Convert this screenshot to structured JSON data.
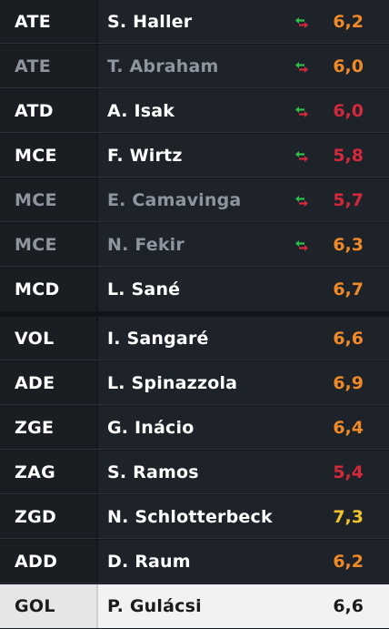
{
  "colors": {
    "orange": "#f08a28",
    "red": "#d4283c",
    "yellow": "#f2c12e",
    "dark_text": "#1b1b1b"
  },
  "players": [
    {
      "pos": "ATE",
      "name": "S. Haller",
      "rating": "6,2",
      "rating_color": "#f08a28",
      "sub": true,
      "dim": false
    },
    {
      "pos": "ATE",
      "name": "T. Abraham",
      "rating": "6,0",
      "rating_color": "#f08a28",
      "sub": true,
      "dim": true
    },
    {
      "pos": "ATD",
      "name": "A. Isak",
      "rating": "6,0",
      "rating_color": "#d4283c",
      "sub": true,
      "dim": false
    },
    {
      "pos": "MCE",
      "name": "F. Wirtz",
      "rating": "5,8",
      "rating_color": "#d4283c",
      "sub": true,
      "dim": false
    },
    {
      "pos": "MCE",
      "name": "E. Camavinga",
      "rating": "5,7",
      "rating_color": "#d4283c",
      "sub": true,
      "dim": true
    },
    {
      "pos": "MCE",
      "name": "N. Fekir",
      "rating": "6,3",
      "rating_color": "#f08a28",
      "sub": true,
      "dim": true
    },
    {
      "pos": "MCD",
      "name": "L. Sané",
      "rating": "6,7",
      "rating_color": "#f08a28",
      "sub": false,
      "dim": false
    },
    {
      "pos": "VOL",
      "name": "I. Sangaré",
      "rating": "6,6",
      "rating_color": "#f08a28",
      "sub": false,
      "dim": false
    },
    {
      "pos": "ADE",
      "name": "L. Spinazzola",
      "rating": "6,9",
      "rating_color": "#f08a28",
      "sub": false,
      "dim": false
    },
    {
      "pos": "ZGE",
      "name": "G. Inácio",
      "rating": "6,4",
      "rating_color": "#f08a28",
      "sub": false,
      "dim": false
    },
    {
      "pos": "ZAG",
      "name": "S. Ramos",
      "rating": "5,4",
      "rating_color": "#d4283c",
      "sub": false,
      "dim": false
    },
    {
      "pos": "ZGD",
      "name": "N. Schlotterbeck",
      "rating": "7,3",
      "rating_color": "#f2c12e",
      "sub": false,
      "dim": false
    },
    {
      "pos": "ADD",
      "name": "D. Raum",
      "rating": "6,2",
      "rating_color": "#f08a28",
      "sub": false,
      "dim": false
    },
    {
      "pos": "GOL",
      "name": "P. Gulácsi",
      "rating": "6,6",
      "rating_color": "#1b1b1b",
      "sub": false,
      "dim": false
    }
  ]
}
